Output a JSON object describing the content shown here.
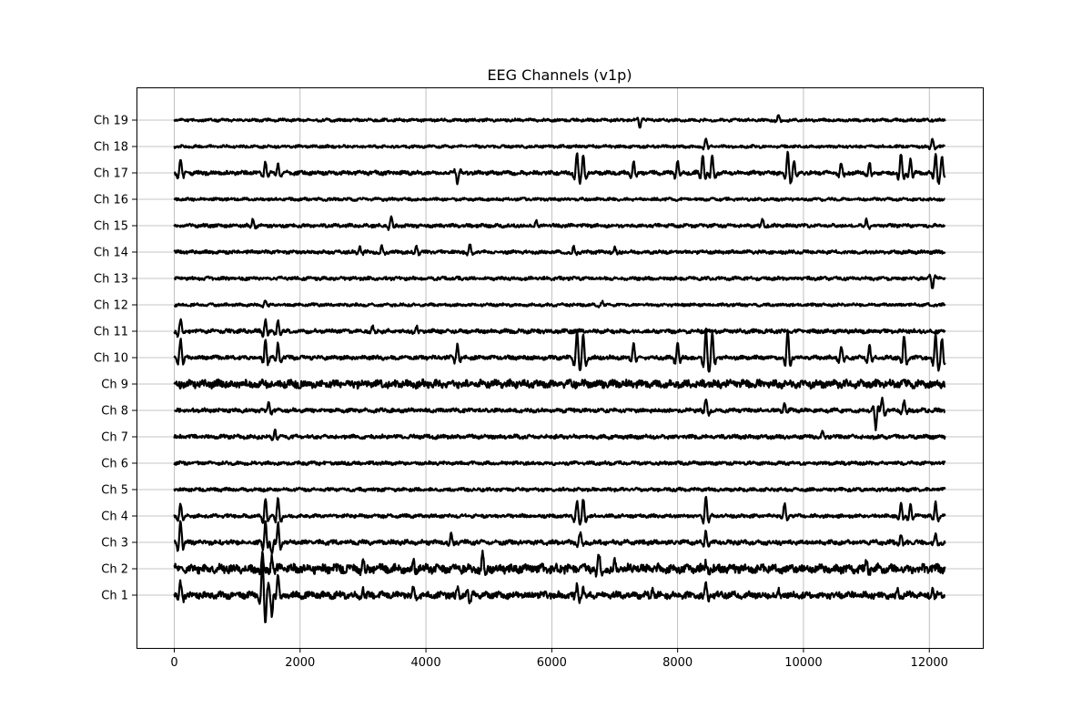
{
  "chart_data": {
    "type": "line",
    "title": "EEG Channels (v1p)",
    "xlabel": "",
    "ylabel": "",
    "xlim": [
      -600,
      12850
    ],
    "x_ticks": [
      0,
      2000,
      4000,
      6000,
      8000,
      10000,
      12000
    ],
    "x_tick_labels": [
      "0",
      "2000",
      "4000",
      "6000",
      "8000",
      "10000",
      "12000"
    ],
    "x_range": [
      0,
      12250
    ],
    "grid": true,
    "line_color": "#000000",
    "channels": [
      "Ch 1",
      "Ch 2",
      "Ch 3",
      "Ch 4",
      "Ch 5",
      "Ch 6",
      "Ch 7",
      "Ch 8",
      "Ch 9",
      "Ch 10",
      "Ch 11",
      "Ch 12",
      "Ch 13",
      "Ch 14",
      "Ch 15",
      "Ch 16",
      "Ch 17",
      "Ch 18",
      "Ch 19"
    ],
    "traces": [
      {
        "name": "Ch 1",
        "noise": 0.12,
        "events": [
          [
            100,
            0.55
          ],
          [
            1400,
            1.1
          ],
          [
            1450,
            -1.0
          ],
          [
            1550,
            -0.8
          ],
          [
            1650,
            0.8
          ],
          [
            3000,
            0.3
          ],
          [
            3800,
            0.3
          ],
          [
            4500,
            0.3
          ],
          [
            4700,
            -0.4
          ],
          [
            6400,
            0.4
          ],
          [
            6500,
            0.3
          ],
          [
            7600,
            0.3
          ],
          [
            8450,
            0.45
          ],
          [
            9600,
            0.2
          ],
          [
            11500,
            0.25
          ],
          [
            12050,
            0.3
          ]
        ]
      },
      {
        "name": "Ch 2",
        "noise": 0.16,
        "events": [
          [
            1400,
            0.5
          ],
          [
            1550,
            0.5
          ],
          [
            3000,
            0.3
          ],
          [
            3800,
            0.3
          ],
          [
            4900,
            0.6
          ],
          [
            6750,
            0.6
          ],
          [
            7000,
            0.3
          ],
          [
            8450,
            0.3
          ],
          [
            11000,
            0.3
          ]
        ]
      },
      {
        "name": "Ch 3",
        "noise": 0.08,
        "events": [
          [
            100,
            0.9
          ],
          [
            1450,
            0.9
          ],
          [
            1550,
            -0.5
          ],
          [
            1650,
            0.8
          ],
          [
            4400,
            0.3
          ],
          [
            6450,
            0.4
          ],
          [
            8450,
            0.5
          ],
          [
            11550,
            0.35
          ],
          [
            12100,
            0.35
          ]
        ]
      },
      {
        "name": "Ch 4",
        "noise": 0.06,
        "events": [
          [
            100,
            0.5
          ],
          [
            1450,
            0.8
          ],
          [
            1650,
            0.8
          ],
          [
            6400,
            0.6
          ],
          [
            6500,
            0.7
          ],
          [
            8450,
            0.8
          ],
          [
            9700,
            0.5
          ],
          [
            11550,
            0.5
          ],
          [
            11700,
            0.5
          ],
          [
            12100,
            0.6
          ]
        ]
      },
      {
        "name": "Ch 5",
        "noise": 0.06,
        "events": []
      },
      {
        "name": "Ch 6",
        "noise": 0.06,
        "events": []
      },
      {
        "name": "Ch 7",
        "noise": 0.07,
        "events": [
          [
            1600,
            0.3
          ],
          [
            10300,
            0.2
          ]
        ]
      },
      {
        "name": "Ch 8",
        "noise": 0.07,
        "events": [
          [
            1500,
            0.3
          ],
          [
            8450,
            0.5
          ],
          [
            9700,
            0.3
          ],
          [
            11150,
            -0.8
          ],
          [
            11250,
            0.5
          ],
          [
            11600,
            0.4
          ]
        ]
      },
      {
        "name": "Ch 9",
        "noise": 0.14,
        "events": []
      },
      {
        "name": "Ch 10",
        "noise": 0.07,
        "events": [
          [
            100,
            0.8
          ],
          [
            1450,
            0.8
          ],
          [
            1650,
            0.6
          ],
          [
            4500,
            0.6
          ],
          [
            6400,
            1.1
          ],
          [
            6500,
            0.9
          ],
          [
            7300,
            0.6
          ],
          [
            8000,
            0.7
          ],
          [
            8450,
            1.2
          ],
          [
            8550,
            1.0
          ],
          [
            9750,
            1.1
          ],
          [
            10600,
            0.5
          ],
          [
            11050,
            0.5
          ],
          [
            11600,
            0.9
          ],
          [
            12100,
            1.0
          ],
          [
            12200,
            0.8
          ]
        ]
      },
      {
        "name": "Ch 11",
        "noise": 0.07,
        "events": [
          [
            100,
            0.5
          ],
          [
            1450,
            0.5
          ],
          [
            1650,
            0.5
          ],
          [
            3150,
            0.2
          ],
          [
            3850,
            0.2
          ]
        ]
      },
      {
        "name": "Ch 12",
        "noise": 0.05,
        "events": [
          [
            1450,
            0.2
          ],
          [
            6800,
            0.15
          ]
        ]
      },
      {
        "name": "Ch 13",
        "noise": 0.06,
        "events": [
          [
            12050,
            -0.4
          ]
        ]
      },
      {
        "name": "Ch 14",
        "noise": 0.06,
        "events": [
          [
            2950,
            0.25
          ],
          [
            3300,
            0.25
          ],
          [
            3850,
            0.25
          ],
          [
            4700,
            0.3
          ],
          [
            6350,
            0.2
          ],
          [
            7000,
            0.2
          ]
        ]
      },
      {
        "name": "Ch 15",
        "noise": 0.06,
        "events": [
          [
            1250,
            0.3
          ],
          [
            3450,
            0.35
          ],
          [
            5750,
            0.2
          ],
          [
            9350,
            0.25
          ],
          [
            11000,
            0.25
          ]
        ]
      },
      {
        "name": "Ch 16",
        "noise": 0.05,
        "events": []
      },
      {
        "name": "Ch 17",
        "noise": 0.07,
        "events": [
          [
            100,
            0.6
          ],
          [
            1450,
            0.5
          ],
          [
            1650,
            0.4
          ],
          [
            4500,
            -0.4
          ],
          [
            6400,
            0.8
          ],
          [
            6500,
            0.7
          ],
          [
            7300,
            0.5
          ],
          [
            8000,
            0.5
          ],
          [
            8400,
            0.8
          ],
          [
            8550,
            0.7
          ],
          [
            9750,
            0.9
          ],
          [
            9850,
            0.5
          ],
          [
            10600,
            0.4
          ],
          [
            11050,
            0.4
          ],
          [
            11550,
            0.8
          ],
          [
            11700,
            0.6
          ],
          [
            12100,
            0.8
          ],
          [
            12200,
            0.7
          ]
        ]
      },
      {
        "name": "Ch 18",
        "noise": 0.05,
        "events": [
          [
            8450,
            0.3
          ],
          [
            12050,
            0.3
          ]
        ]
      },
      {
        "name": "Ch 19",
        "noise": 0.05,
        "events": [
          [
            7400,
            -0.3
          ],
          [
            9600,
            0.2
          ]
        ]
      }
    ]
  }
}
